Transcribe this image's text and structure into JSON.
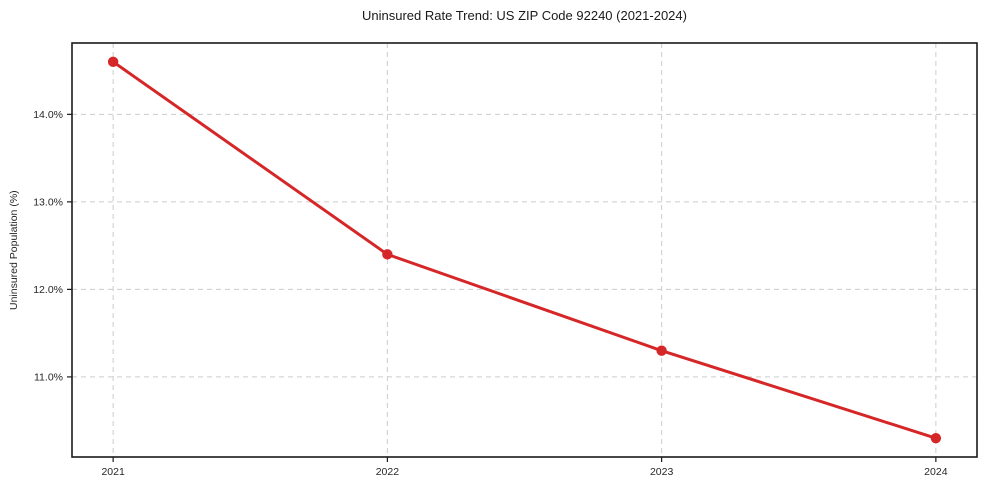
{
  "chart_data": {
    "type": "line",
    "title": "Uninsured Rate Trend: US ZIP Code 92240 (2021-2024)",
    "xlabel": "",
    "ylabel": "Uninsured Population (%)",
    "x": [
      2021,
      2022,
      2023,
      2024
    ],
    "series": [
      {
        "name": "Uninsured Population (%)",
        "values": [
          14.6,
          12.4,
          11.3,
          10.3
        ]
      }
    ],
    "xticks": [
      2021,
      2022,
      2023,
      2024
    ],
    "xtick_labels": [
      "2021",
      "2022",
      "2023",
      "2024"
    ],
    "yticks": [
      11.0,
      12.0,
      13.0,
      14.0
    ],
    "ytick_labels": [
      "11.0%",
      "12.0%",
      "13.0%",
      "14.0%"
    ],
    "xlim": [
      2020.85,
      2024.15
    ],
    "ylim": [
      10.085,
      14.815
    ],
    "grid": true,
    "grid_style": "dashed",
    "legend": "none",
    "line_color": "#d62728",
    "marker": "circle",
    "grid_color": "#cccccc",
    "frame_color": "#1a1a1a",
    "background": "#ffffff"
  }
}
